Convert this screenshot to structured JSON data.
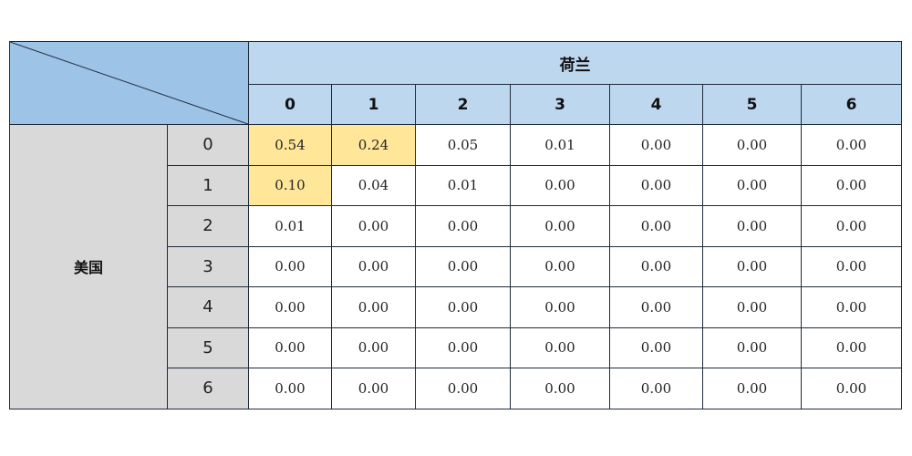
{
  "col_group_label": "荷兰",
  "row_group_label": "美国",
  "col_headers": [
    "0",
    "1",
    "2",
    "3",
    "4",
    "5",
    "6"
  ],
  "row_headers": [
    "0",
    "1",
    "2",
    "3",
    "4",
    "5",
    "6"
  ],
  "highlight_color": "#ffe699",
  "highlighted_cells": [
    [
      0,
      0
    ],
    [
      0,
      1
    ],
    [
      1,
      0
    ]
  ],
  "rows": [
    [
      "0.54",
      "0.24",
      "0.05",
      "0.01",
      "0.00",
      "0.00",
      "0.00"
    ],
    [
      "0.10",
      "0.04",
      "0.01",
      "0.00",
      "0.00",
      "0.00",
      "0.00"
    ],
    [
      "0.01",
      "0.00",
      "0.00",
      "0.00",
      "0.00",
      "0.00",
      "0.00"
    ],
    [
      "0.00",
      "0.00",
      "0.00",
      "0.00",
      "0.00",
      "0.00",
      "0.00"
    ],
    [
      "0.00",
      "0.00",
      "0.00",
      "0.00",
      "0.00",
      "0.00",
      "0.00"
    ],
    [
      "0.00",
      "0.00",
      "0.00",
      "0.00",
      "0.00",
      "0.00",
      "0.00"
    ],
    [
      "0.00",
      "0.00",
      "0.00",
      "0.00",
      "0.00",
      "0.00",
      "0.00"
    ]
  ]
}
